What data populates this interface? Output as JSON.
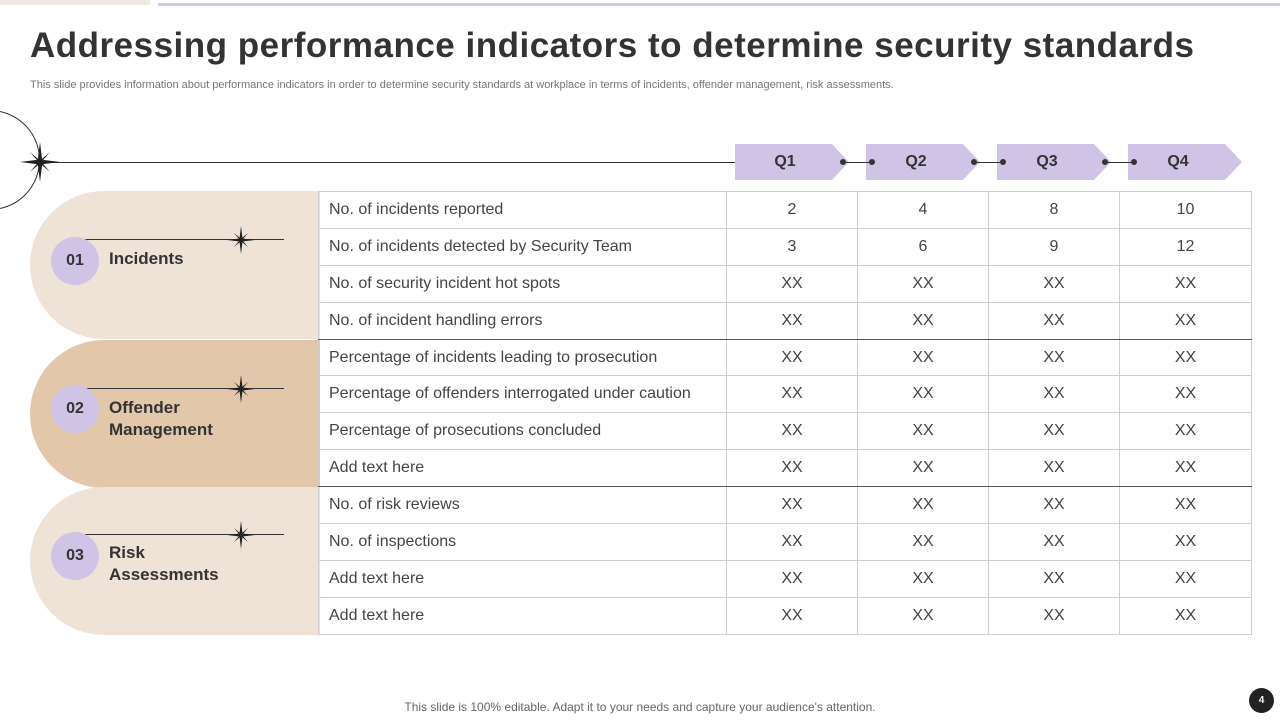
{
  "slide": {
    "title": "Addressing performance indicators to determine security standards",
    "subtitle": "This slide provides information about performance indicators in order to determine security standards at workplace in terms of incidents, offender management, risk assessments.",
    "footer": "This slide is 100% editable. Adapt it to your needs and capture your audience's attention.",
    "page_number": "4"
  },
  "quarters": [
    "Q1",
    "Q2",
    "Q3",
    "Q4"
  ],
  "categories": [
    {
      "number": "01",
      "label_line1": "Incidents",
      "label_line2": ""
    },
    {
      "number": "02",
      "label_line1": "Offender",
      "label_line2": "Management"
    },
    {
      "number": "03",
      "label_line1": "Risk",
      "label_line2": "Assessments"
    }
  ],
  "rows": [
    {
      "label": "No. of incidents reported",
      "values": [
        "2",
        "4",
        "8",
        "10"
      ]
    },
    {
      "label": "No. of incidents detected by Security Team",
      "values": [
        "3",
        "6",
        "9",
        "12"
      ]
    },
    {
      "label": "No. of security incident hot spots",
      "values": [
        "XX",
        "XX",
        "XX",
        "XX"
      ]
    },
    {
      "label": "No. of incident handling errors",
      "values": [
        "XX",
        "XX",
        "XX",
        "XX"
      ]
    },
    {
      "label": "Percentage of incidents leading to prosecution",
      "values": [
        "XX",
        "XX",
        "XX",
        "XX"
      ]
    },
    {
      "label": "Percentage of offenders interrogated under caution",
      "values": [
        "XX",
        "XX",
        "XX",
        "XX"
      ]
    },
    {
      "label": "Percentage of prosecutions concluded",
      "values": [
        "XX",
        "XX",
        "XX",
        "XX"
      ]
    },
    {
      "label": "Add text here",
      "values": [
        "XX",
        "XX",
        "XX",
        "XX"
      ]
    },
    {
      "label": "No. of risk reviews",
      "values": [
        "XX",
        "XX",
        "XX",
        "XX"
      ]
    },
    {
      "label": "No. of inspections",
      "values": [
        "XX",
        "XX",
        "XX",
        "XX"
      ]
    },
    {
      "label": "Add text here",
      "values": [
        "XX",
        "XX",
        "XX",
        "XX"
      ]
    },
    {
      "label": "Add text here",
      "values": [
        "XX",
        "XX",
        "XX",
        "XX"
      ]
    }
  ]
}
